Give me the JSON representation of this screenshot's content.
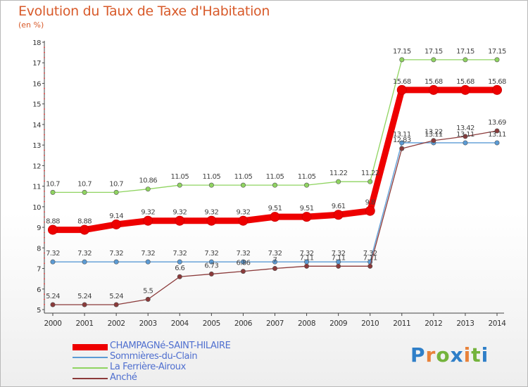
{
  "header": {
    "title": "Evolution du Taux de Taxe d'Habitation",
    "unit": "(en %)"
  },
  "logo": {
    "letters": [
      "P",
      "r",
      "o",
      "x",
      "i",
      "t",
      "i"
    ],
    "colors": [
      "#2f7fc8",
      "#e8823a",
      "#74b33c",
      "#2f7fc8",
      "#e8823a",
      "#74b33c",
      "#2f7fc8"
    ]
  },
  "chart_data": {
    "type": "line",
    "x": [
      "2000",
      "2001",
      "2002",
      "2003",
      "2004",
      "2005",
      "2006",
      "2007",
      "2008",
      "2009",
      "2010",
      "2011",
      "2012",
      "2013",
      "2014"
    ],
    "ylim": [
      5,
      18
    ],
    "yticks": [
      "5",
      "6",
      "7",
      "8",
      "9",
      "10",
      "11",
      "12",
      "13",
      "14",
      "15",
      "16",
      "17",
      "18"
    ],
    "grid": false,
    "legend_position": "bottom-left",
    "series": [
      {
        "name": "CHAMPAGNé-SAINT-HILAIRE",
        "color": "#ee0000",
        "width": 6,
        "values": [
          8.88,
          8.88,
          9.14,
          9.32,
          9.32,
          9.32,
          9.32,
          9.51,
          9.51,
          9.61,
          9.8,
          15.68,
          15.68,
          15.68,
          15.68
        ],
        "labels": [
          "8.88",
          "8.88",
          "9.14",
          "9.32",
          "9.32",
          "9.32",
          "9.32",
          "9.51",
          "9.51",
          "9.61",
          "9.8",
          "15.68",
          "15.68",
          "15.68",
          "15.68"
        ]
      },
      {
        "name": "Sommières-du-Clain",
        "color": "#5b9bd5",
        "width": 1,
        "values": [
          7.32,
          7.32,
          7.32,
          7.32,
          7.32,
          7.32,
          7.32,
          7.32,
          7.32,
          7.32,
          7.32,
          13.11,
          13.11,
          13.11,
          13.11
        ],
        "labels": [
          "7.32",
          "7.32",
          "7.32",
          "7.32",
          "7.32",
          "7.32",
          "7.32",
          "7.32",
          "7.32",
          "7.32",
          "7.32",
          "13.11",
          "13.11",
          "13.11",
          "13.11"
        ]
      },
      {
        "name": "La Ferrière-Airoux",
        "color": "#8fd460",
        "width": 1,
        "values": [
          10.7,
          10.7,
          10.7,
          10.86,
          11.05,
          11.05,
          11.05,
          11.05,
          11.05,
          11.22,
          11.22,
          17.15,
          17.15,
          17.15,
          17.15
        ],
        "labels": [
          "10.7",
          "10.7",
          "10.7",
          "10.86",
          "11.05",
          "11.05",
          "11.05",
          "11.05",
          "11.05",
          "11.22",
          "11.22",
          "17.15",
          "17.15",
          "17.15",
          "17.15"
        ]
      },
      {
        "name": "Anché",
        "color": "#8b3a3a",
        "width": 1,
        "values": [
          5.24,
          5.24,
          5.24,
          5.5,
          6.6,
          6.73,
          6.86,
          7,
          7.11,
          7.11,
          7.11,
          12.83,
          13.22,
          13.42,
          13.69
        ],
        "labels": [
          "5.24",
          "5.24",
          "5.24",
          "5.5",
          "6.6",
          "6.73",
          "6.86",
          "7",
          "7.11",
          "7.11",
          "7.11",
          "12.83",
          "13.22",
          "13.42",
          "13.69"
        ]
      }
    ]
  }
}
